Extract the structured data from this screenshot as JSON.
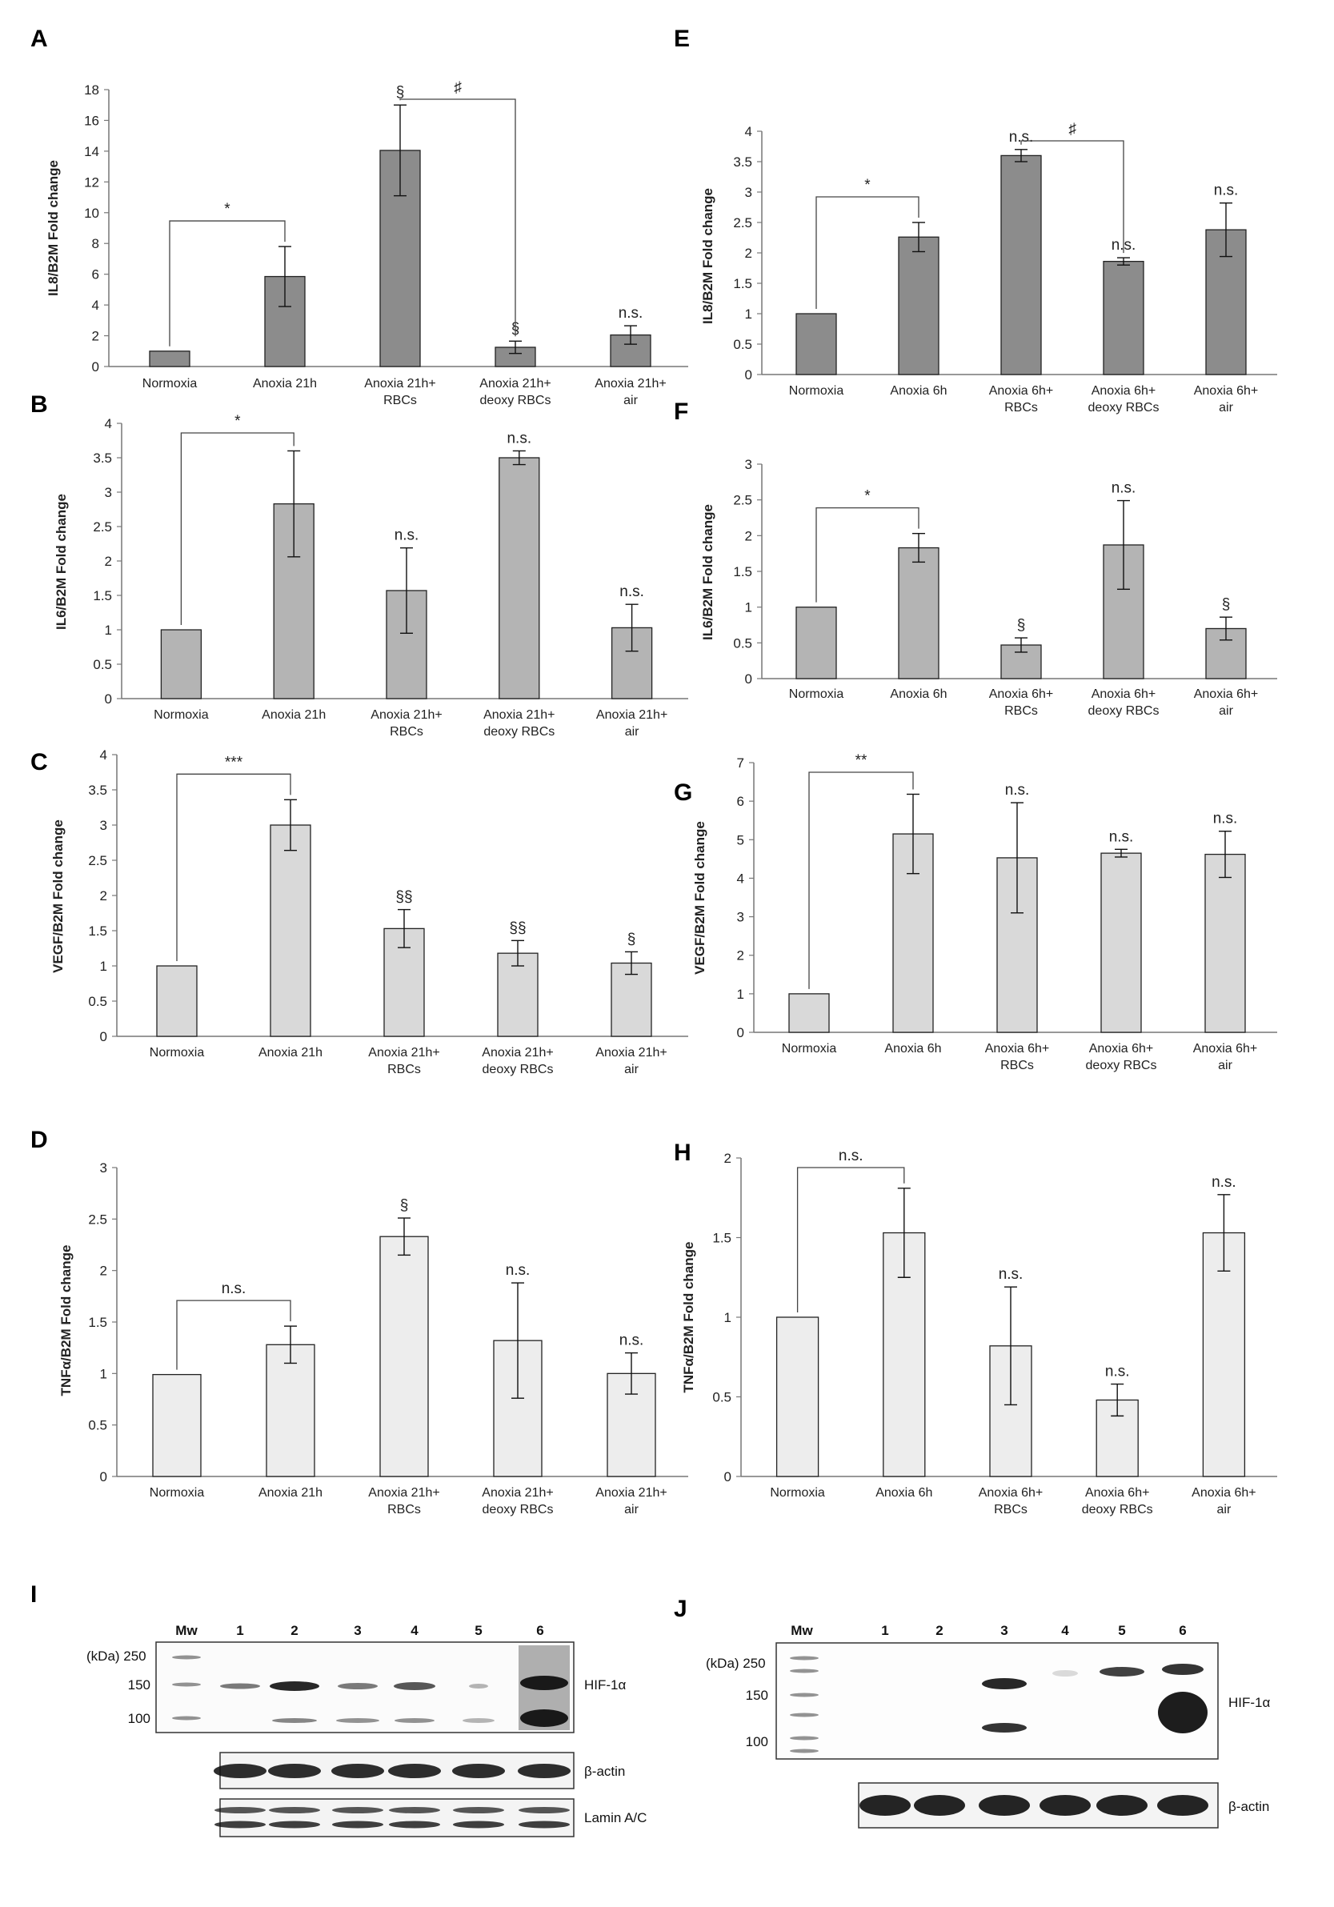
{
  "colors": {
    "dark": "#8c8c8c",
    "mid": "#b4b4b4",
    "light": "#d9d9d9",
    "lightest": "#ededed",
    "axis": "#777777",
    "bar_edge": "#222222"
  },
  "chart_data": [
    {
      "panel": "A",
      "type": "bar",
      "ylabel": "IL8/B2M Fold change",
      "ylim": [
        0,
        18
      ],
      "yticks": [
        "0",
        "2",
        "4",
        "6",
        "8",
        "10",
        "12",
        "14",
        "16",
        "18"
      ],
      "categories": [
        [
          "Normoxia"
        ],
        [
          "Anoxia 21h"
        ],
        [
          "Anoxia 21h+",
          "RBCs"
        ],
        [
          "Anoxia 21h+",
          "deoxy RBCs"
        ],
        [
          "Anoxia 21h+",
          "air"
        ]
      ],
      "values": [
        1.0,
        5.85,
        14.05,
        1.25,
        2.05
      ],
      "errors": [
        0,
        1.95,
        2.95,
        0.4,
        0.6
      ],
      "labels": [
        "",
        "",
        "§",
        "§",
        "n.s."
      ],
      "brackets": [
        {
          "from": 0,
          "to": 1,
          "text": "*"
        },
        {
          "from": 2,
          "to": 3,
          "text": "♯"
        }
      ]
    },
    {
      "panel": "B",
      "type": "bar",
      "ylabel": "IL6/B2M Fold change",
      "ylim": [
        0,
        4
      ],
      "yticks": [
        "0",
        "0.5",
        "1",
        "1.5",
        "2",
        "2.5",
        "3",
        "3.5",
        "4"
      ],
      "categories": [
        [
          "Normoxia"
        ],
        [
          "Anoxia 21h"
        ],
        [
          "Anoxia 21h+",
          "RBCs"
        ],
        [
          "Anoxia 21h+",
          "deoxy RBCs"
        ],
        [
          "Anoxia 21h+",
          "air"
        ]
      ],
      "values": [
        1.0,
        2.83,
        1.57,
        3.5,
        1.03
      ],
      "errors": [
        0,
        0.77,
        0.62,
        0.1,
        0.34
      ],
      "labels": [
        "",
        "",
        "n.s.",
        "n.s.",
        "n.s."
      ],
      "brackets": [
        {
          "from": 0,
          "to": 1,
          "text": "*"
        }
      ]
    },
    {
      "panel": "C",
      "type": "bar",
      "ylabel": "VEGF/B2M Fold change",
      "ylim": [
        0,
        4
      ],
      "yticks": [
        "0",
        "0.5",
        "1",
        "1.5",
        "2",
        "2.5",
        "3",
        "3.5",
        "4"
      ],
      "categories": [
        [
          "Normoxia"
        ],
        [
          "Anoxia 21h"
        ],
        [
          "Anoxia 21h+",
          "RBCs"
        ],
        [
          "Anoxia 21h+",
          "deoxy RBCs"
        ],
        [
          "Anoxia 21h+",
          "air"
        ]
      ],
      "values": [
        1.0,
        3.0,
        1.53,
        1.18,
        1.04
      ],
      "errors": [
        0,
        0.36,
        0.27,
        0.18,
        0.16
      ],
      "labels": [
        "",
        "",
        "§§",
        "§§",
        "§"
      ],
      "brackets": [
        {
          "from": 0,
          "to": 1,
          "text": "***"
        }
      ]
    },
    {
      "panel": "D",
      "type": "bar",
      "ylabel": "TNFα/B2M Fold change",
      "ylim": [
        0,
        3
      ],
      "yticks": [
        "0",
        "0.5",
        "1",
        "1.5",
        "2",
        "2.5",
        "3"
      ],
      "categories": [
        [
          "Normoxia"
        ],
        [
          "Anoxia 21h"
        ],
        [
          "Anoxia 21h+",
          "RBCs"
        ],
        [
          "Anoxia 21h+",
          "deoxy RBCs"
        ],
        [
          "Anoxia 21h+",
          "air"
        ]
      ],
      "values": [
        0.99,
        1.28,
        2.33,
        1.32,
        1.0
      ],
      "errors": [
        0,
        0.18,
        0.18,
        0.56,
        0.2
      ],
      "labels": [
        "",
        "",
        "§",
        "n.s.",
        "n.s."
      ],
      "brackets": [
        {
          "from": 0,
          "to": 1,
          "text": "n.s."
        }
      ]
    },
    {
      "panel": "E",
      "type": "bar",
      "ylabel": "IL8/B2M Fold change",
      "ylim": [
        0,
        4
      ],
      "yticks": [
        "0",
        "0.5",
        "1",
        "1.5",
        "2",
        "2.5",
        "3",
        "3.5",
        "4"
      ],
      "categories": [
        [
          "Normoxia"
        ],
        [
          "Anoxia 6h"
        ],
        [
          "Anoxia 6h+",
          "RBCs"
        ],
        [
          "Anoxia 6h+",
          "deoxy RBCs"
        ],
        [
          "Anoxia 6h+",
          "air"
        ]
      ],
      "values": [
        1.0,
        2.26,
        3.6,
        1.86,
        2.38
      ],
      "errors": [
        0,
        0.24,
        0.1,
        0.06,
        0.44
      ],
      "labels": [
        "",
        "",
        "n.s.",
        "n.s.",
        "n.s."
      ],
      "brackets": [
        {
          "from": 0,
          "to": 1,
          "text": "*"
        },
        {
          "from": 2,
          "to": 3,
          "text": "♯"
        }
      ]
    },
    {
      "panel": "F",
      "type": "bar",
      "ylabel": "IL6/B2M Fold change",
      "ylim": [
        0,
        3
      ],
      "yticks": [
        "0",
        "0.5",
        "1",
        "1.5",
        "2",
        "2.5",
        "3"
      ],
      "categories": [
        [
          "Normoxia"
        ],
        [
          "Anoxia 6h"
        ],
        [
          "Anoxia 6h+",
          "RBCs"
        ],
        [
          "Anoxia 6h+",
          "deoxy RBCs"
        ],
        [
          "Anoxia 6h+",
          "air"
        ]
      ],
      "values": [
        1.0,
        1.83,
        0.47,
        1.87,
        0.7
      ],
      "errors": [
        0,
        0.2,
        0.1,
        0.62,
        0.16
      ],
      "labels": [
        "",
        "",
        "§",
        "n.s.",
        "§"
      ],
      "brackets": [
        {
          "from": 0,
          "to": 1,
          "text": "*"
        }
      ]
    },
    {
      "panel": "G",
      "type": "bar",
      "ylabel": "VEGF/B2M Fold change",
      "ylim": [
        0,
        7
      ],
      "yticks": [
        "0",
        "1",
        "2",
        "3",
        "4",
        "5",
        "6",
        "7"
      ],
      "categories": [
        [
          "Normoxia"
        ],
        [
          "Anoxia 6h"
        ],
        [
          "Anoxia 6h+",
          "RBCs"
        ],
        [
          "Anoxia 6h+",
          "deoxy RBCs"
        ],
        [
          "Anoxia 6h+",
          "air"
        ]
      ],
      "values": [
        1.0,
        5.15,
        4.53,
        4.65,
        4.62
      ],
      "errors": [
        0,
        1.03,
        1.43,
        0.1,
        0.6
      ],
      "labels": [
        "",
        "",
        "n.s.",
        "n.s.",
        "n.s."
      ],
      "brackets": [
        {
          "from": 0,
          "to": 1,
          "text": "**"
        }
      ]
    },
    {
      "panel": "H",
      "type": "bar",
      "ylabel": "TNFα/B2M Fold change",
      "ylim": [
        0,
        2
      ],
      "yticks": [
        "0",
        "0.5",
        "1",
        "1.5",
        "2"
      ],
      "categories": [
        [
          "Normoxia"
        ],
        [
          "Anoxia 6h"
        ],
        [
          "Anoxia 6h+",
          "RBCs"
        ],
        [
          "Anoxia 6h+",
          "deoxy RBCs"
        ],
        [
          "Anoxia 6h+",
          "air"
        ]
      ],
      "values": [
        1.0,
        1.53,
        0.82,
        0.48,
        1.53
      ],
      "errors": [
        0,
        0.28,
        0.37,
        0.1,
        0.24
      ],
      "labels": [
        "",
        "",
        "n.s.",
        "n.s.",
        "n.s."
      ],
      "brackets": [
        {
          "from": 0,
          "to": 1,
          "text": "n.s."
        }
      ]
    }
  ],
  "blots": [
    {
      "panel": "I",
      "lanes": [
        "Mw",
        "1",
        "2",
        "3",
        "4",
        "5",
        "6"
      ],
      "kda_unit": "(kDa)",
      "markers": [
        "250",
        "150",
        "100"
      ],
      "main_label": "HIF-1α",
      "loading": [
        "β-actin",
        "Lamin A/C"
      ]
    },
    {
      "panel": "J",
      "lanes": [
        "Mw",
        "1",
        "2",
        "3",
        "4",
        "5",
        "6"
      ],
      "kda_unit": "(kDa)",
      "markers": [
        "250",
        "150",
        "100"
      ],
      "main_label": "HIF-1α",
      "loading": [
        "β-actin"
      ]
    }
  ]
}
